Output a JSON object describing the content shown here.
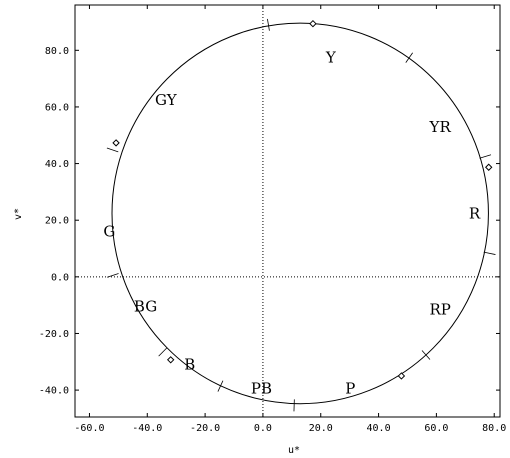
{
  "chart_data": {
    "type": "scatter",
    "title": "",
    "xlabel": "u*",
    "ylabel": "v*",
    "xlim": [
      -65,
      82
    ],
    "ylim": [
      -49.5,
      96
    ],
    "x_ticks": [
      -60,
      -40,
      -20,
      0,
      20,
      40,
      60,
      80
    ],
    "x_tick_labels": [
      "-60.0",
      "-40.0",
      "-20.0",
      "0.0",
      "20.0",
      "40.0",
      "60.0",
      "80.0"
    ],
    "y_ticks": [
      -40,
      -20,
      0,
      20,
      40,
      60,
      80
    ],
    "y_tick_labels": [
      "-40.0",
      "-20.0",
      "0.0",
      "20.0",
      "40.0",
      "60.0",
      "80.0"
    ],
    "reference_lines": {
      "x": 0,
      "y": 0,
      "style": "dotted"
    },
    "circle": {
      "center": [
        12.9,
        22.4
      ],
      "radius_u": 65.1,
      "radius_v": 67.2
    },
    "points": [
      {
        "name": "diamond-marker",
        "u": 17.3,
        "v": 89.4
      },
      {
        "name": "diamond-marker",
        "u": 78.1,
        "v": 38.7
      },
      {
        "name": "diamond-marker",
        "u": -50.8,
        "v": 47.3
      },
      {
        "name": "diamond-marker",
        "u": -31.9,
        "v": -29.3
      },
      {
        "name": "diamond-marker",
        "u": 47.9,
        "v": -35.0
      }
    ],
    "boundary_marks": [
      {
        "u": 1.9,
        "v": 89.0
      },
      {
        "u": 50.6,
        "v": 77.4
      },
      {
        "u": 76.9,
        "v": 42.5
      },
      {
        "u": 78.4,
        "v": 8.3
      },
      {
        "u": 56.4,
        "v": -27.6
      },
      {
        "u": 10.8,
        "v": -45.4
      },
      {
        "u": -14.7,
        "v": -38.6
      },
      {
        "u": -34.6,
        "v": -26.5
      },
      {
        "u": -51.9,
        "v": 0.5
      },
      {
        "u": -52.0,
        "v": 44.8
      }
    ],
    "region_labels": [
      {
        "label": "Y",
        "u": 23.5,
        "v": 77.5
      },
      {
        "label": "YR",
        "u": 61.3,
        "v": 53.0
      },
      {
        "label": "R",
        "u": 73.2,
        "v": 22.3
      },
      {
        "label": "RP",
        "u": 61.3,
        "v": -11.5
      },
      {
        "label": "P",
        "u": 30.2,
        "v": -39.5
      },
      {
        "label": "PB",
        "u": -0.5,
        "v": -39.5
      },
      {
        "label": "B",
        "u": -25.3,
        "v": -31.0
      },
      {
        "label": "BG",
        "u": -40.6,
        "v": -10.5
      },
      {
        "label": "G",
        "u": -53.1,
        "v": 16.0
      },
      {
        "label": "GY",
        "u": -33.6,
        "v": 62.5
      }
    ]
  }
}
